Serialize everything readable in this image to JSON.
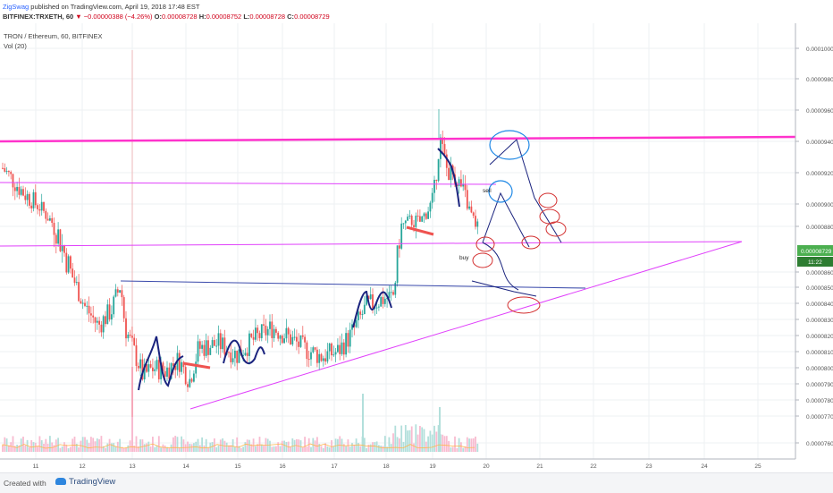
{
  "header": {
    "publisher": "ZigSwag",
    "published_text": " published on TradingView.com, April 19, 2018 17:48 EST",
    "symbol": "BITFINEX:TRXETH, 60",
    "change": "▼ −0.00000388 (−4.26%)",
    "o_label": "O:",
    "o_value": "0.00008728",
    "h_label": "H:",
    "h_value": "0.00008752",
    "l_label": "L:",
    "l_value": "0.00008728",
    "c_label": "C:",
    "c_value": "0.00008729"
  },
  "legend": {
    "ticker": "TRON / Ethereum, 60, BITFINEX",
    "volume": "Vol (20)"
  },
  "chart_data": {
    "type": "candlestick",
    "x_axis_ticks": [
      "11",
      "12",
      "13",
      "14",
      "15",
      "16",
      "17",
      "18",
      "19",
      "20",
      "21",
      "22",
      "23",
      "24",
      "25"
    ],
    "y_axis_ticks": [
      "0.00010000",
      "0.00009800",
      "0.00009600",
      "0.00009400",
      "0.00009200",
      "0.00009000",
      "0.00008800",
      "0.00008600",
      "0.00008500",
      "0.00008400",
      "0.00008300",
      "0.00008200",
      "0.00008100",
      "0.00008000",
      "0.00007900",
      "0.00007800",
      "0.00007700",
      "0.00007600"
    ],
    "last_price_label": "0.00008729",
    "countdown_label": "11:22",
    "annotations": [
      "sell",
      "buy"
    ],
    "colors": {
      "up": "#26a69a",
      "down": "#ef5350",
      "trendline": "#ff33cc",
      "resistance": "#e040fb",
      "drawing_blue": "#1a237e",
      "drawing_red": "#d32f2f",
      "circle_blue": "#1e88e5",
      "price_label_bg": "#4caf50",
      "countdown_bg": "#2e7d32"
    }
  }
}
